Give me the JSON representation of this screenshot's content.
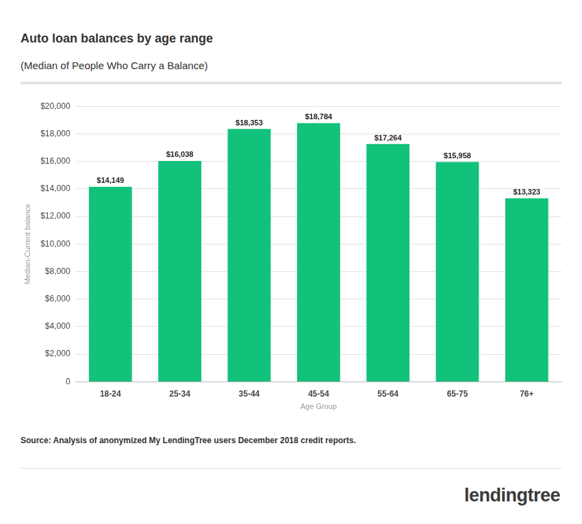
{
  "chart_data": {
    "type": "bar",
    "title": "Auto loan balances by age range",
    "subtitle": "(Median of People Who Carry a Balance)",
    "x_label": "Age Group",
    "y_label": "Median-Current balance",
    "categories": [
      "18-24",
      "25-34",
      "35-44",
      "45-54",
      "55-64",
      "65-75",
      "76+"
    ],
    "values": [
      14149,
      16038,
      18353,
      18784,
      17264,
      15958,
      13323
    ],
    "value_labels": [
      "$14,149",
      "$16,038",
      "$18,353",
      "$18,784",
      "$17,264",
      "$15,958",
      "$13,323"
    ],
    "color": "#12c17a",
    "ylim": [
      0,
      20000
    ],
    "yticks": [
      0,
      {
        "value": 2000,
        "label": "$2,000"
      },
      {
        "value": 4000,
        "label": "$4,000"
      },
      {
        "value": 6000,
        "label": "$6,000"
      },
      {
        "value": 8000,
        "label": "$8,000"
      },
      {
        "value": 10000,
        "label": "$10,000"
      },
      {
        "value": 12000,
        "label": "$12,000"
      },
      {
        "value": 14000,
        "label": "$14,000"
      },
      {
        "value": 16000,
        "label": "$16,000"
      },
      {
        "value": 18000,
        "label": "$18,000"
      },
      {
        "value": 20000,
        "label": "$20,000"
      }
    ],
    "grid": true,
    "data_labels": true,
    "source": "Source: Analysis of anonymized My LendingTree users December 2018 credit reports.",
    "brand": "lendingtree"
  }
}
